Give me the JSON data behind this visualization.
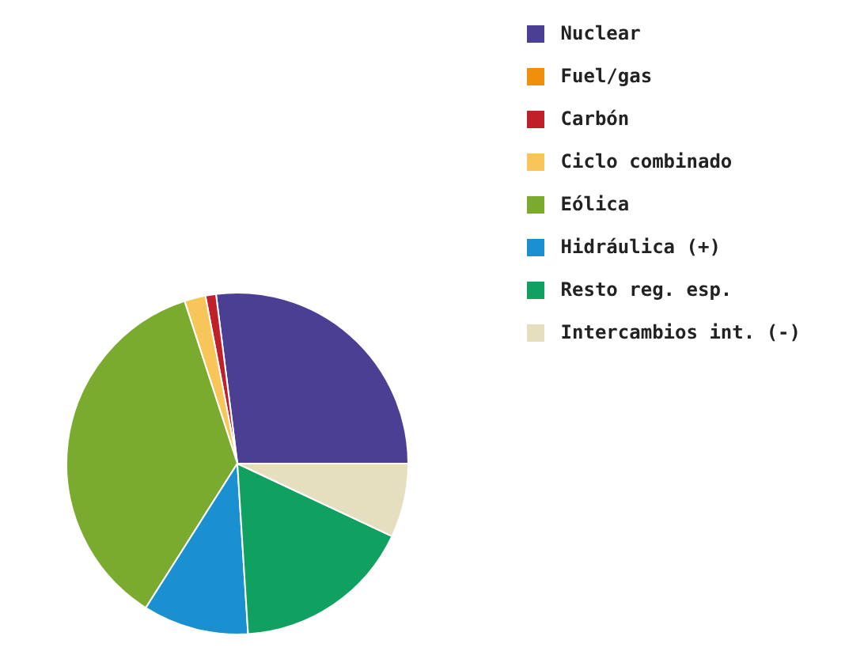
{
  "chart_data": {
    "type": "pie",
    "categories": [
      "Nuclear",
      "Fuel/gas",
      "Carbón",
      "Ciclo combinado",
      "Eólica",
      "Hidráulica (+)",
      "Resto reg. esp.",
      "Intercambios int. (-)"
    ],
    "values": [
      27,
      0,
      1,
      2,
      36,
      10,
      17,
      7
    ],
    "colors": [
      "#4b3f94",
      "#f0900a",
      "#c0202a",
      "#f7c55a",
      "#7aab2e",
      "#1a90d0",
      "#10a060",
      "#e6dfbf"
    ],
    "legend": "top right"
  }
}
